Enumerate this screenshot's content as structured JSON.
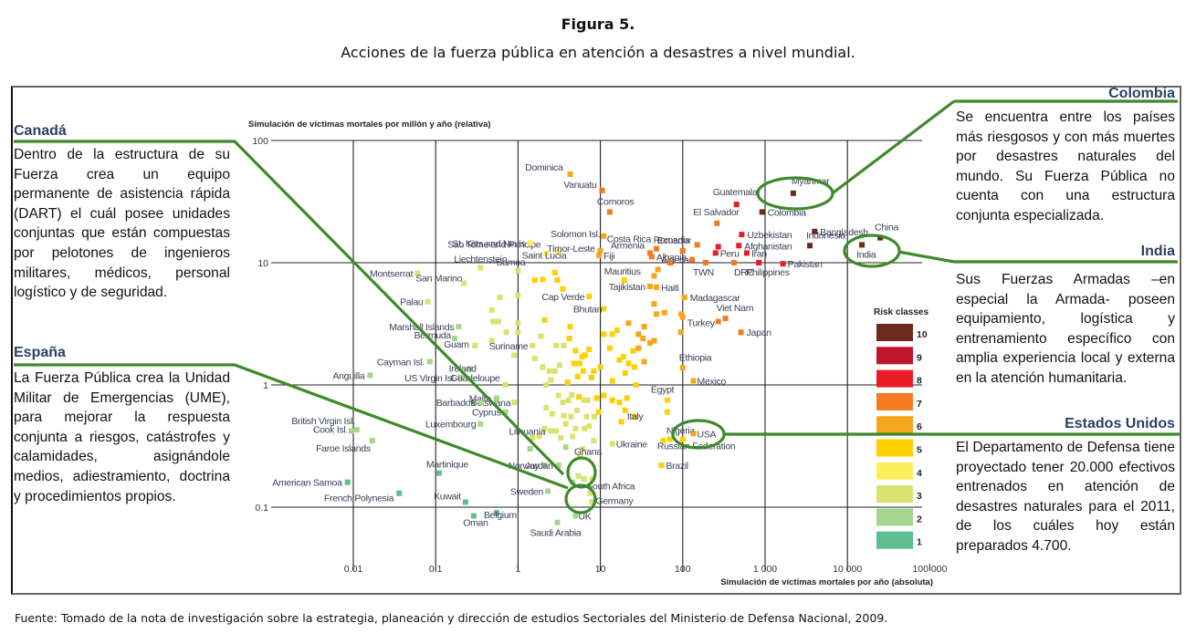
{
  "figure": {
    "title": "Figura 5.",
    "subtitle": "Acciones de la fuerza pública en atención a desastres a nivel mundial.",
    "source": "Fuente: Tomado de la nota de investigación sobre la estrategia, planeación y dirección de estudios Sectoriales del Ministerio de Defensa Nacional, 2009."
  },
  "panels": {
    "canada": {
      "title": "Canadá",
      "body": "Dentro de la estructura de su Fuerza crea un equipo permanente de asistencia rápida (DART) el cuál posee unidades conjuntas que están compuestas por pelotones de ingenieros militares, médicos, personal logístico y de seguridad."
    },
    "espana": {
      "title": "España",
      "body": "La Fuerza Pública crea la Unidad Militar de Emergencias (UME), para mejorar la respuesta conjunta a riesgos, catástrofes y calamidades, asignándole medios, adiestramiento, doctrina y procedimientos propios."
    },
    "colombia": {
      "title": "Colombia",
      "body": "Se encuentra entre los países más riesgosos y con más muertes por desastres naturales del mundo. Su Fuerza Pública no cuenta con una estructura conjunta especializada."
    },
    "india": {
      "title": "India",
      "body": "Sus Fuerzas Armadas –en especial la Armada- poseen equipamiento, logística y entrenamiento específico con amplia experiencia local y externa en la atención humanitaria."
    },
    "usa": {
      "title": "Estados Unidos",
      "body": "El Departamento de Defensa tiene proyectado tener 20.000 efectivos entrenados en atención de desastres naturales para el 2011, de los cuáles hoy están preparados 4.700."
    }
  },
  "chart_data": {
    "type": "scatter",
    "title": "",
    "xlabel": "Simulación de víctimas mortales por año (absoluta)",
    "ylabel": "Simulación de víctimas mortales por millón y año (relativa)",
    "xscale": "log",
    "yscale": "log",
    "xlim": [
      0.01,
      100000
    ],
    "ylim": [
      0.05,
      100
    ],
    "x_ticks": [
      "0.01",
      "0.1",
      "1",
      "10",
      "100",
      "1 000",
      "10 000",
      "100 000"
    ],
    "x_tick_values": [
      0.01,
      0.1,
      1,
      10,
      100,
      1000,
      10000,
      100000
    ],
    "y_ticks": [
      "100",
      "10",
      "1",
      "0.1"
    ],
    "y_tick_values": [
      100,
      10,
      1,
      0.1
    ],
    "grid": true,
    "legend": {
      "title": "Risk classes",
      "placement": "right",
      "classes": [
        {
          "label": "10",
          "color": "#6b2a1c"
        },
        {
          "label": "9",
          "color": "#c0152f"
        },
        {
          "label": "8",
          "color": "#ec1c24"
        },
        {
          "label": "7",
          "color": "#f37c20"
        },
        {
          "label": "6",
          "color": "#f6a51d"
        },
        {
          "label": "5",
          "color": "#fdd000"
        },
        {
          "label": "4",
          "color": "#fcef5b"
        },
        {
          "label": "3",
          "color": "#d9e36e"
        },
        {
          "label": "2",
          "color": "#a8d58d"
        },
        {
          "label": "1",
          "color": "#5cbf8f"
        }
      ]
    },
    "highlighted": [
      "Colombia",
      "India",
      "USA",
      "Ghana",
      "South Africa"
    ],
    "points": [
      {
        "label": "Dominica",
        "x": 4.3,
        "y": 53,
        "cls": 6
      },
      {
        "label": "Vanuatu",
        "x": 10.5,
        "y": 39,
        "cls": 7
      },
      {
        "label": "Comoros",
        "x": 13,
        "y": 26,
        "cls": 7
      },
      {
        "label": "Guatemala",
        "x": 450,
        "y": 30,
        "cls": 8
      },
      {
        "label": "El Salvador",
        "x": 260,
        "y": 21,
        "cls": 7
      },
      {
        "label": "Myanmar",
        "x": 2200,
        "y": 37,
        "cls": 10
      },
      {
        "label": "Colombia",
        "x": 920,
        "y": 26,
        "cls": 10
      },
      {
        "label": "Bangladesh",
        "x": 4000,
        "y": 18,
        "cls": 10
      },
      {
        "label": "Uzbekistan",
        "x": 520,
        "y": 17,
        "cls": 8
      },
      {
        "label": "",
        "x": 270,
        "y": 13.5,
        "cls": 8
      },
      {
        "label": "Afghanistan",
        "x": 480,
        "y": 13.8,
        "cls": 8
      },
      {
        "label": "Romania",
        "x": 150,
        "y": 14,
        "cls": 7
      },
      {
        "label": "Indonesia",
        "x": 3500,
        "y": 13.8,
        "cls": 10
      },
      {
        "label": "China",
        "x": 25000,
        "y": 16,
        "cls": 10
      },
      {
        "label": "India",
        "x": 15000,
        "y": 14,
        "cls": 10
      },
      {
        "label": "Solomon Isl.",
        "x": 11,
        "y": 16.5,
        "cls": 6
      },
      {
        "label": "Costa Rica",
        "x": 48,
        "y": 13,
        "cls": 7
      },
      {
        "label": "Sao Tome and Principe",
        "x": 2.2,
        "y": 12,
        "cls": 4
      },
      {
        "label": "St. Kitts and Nevis",
        "x": 1.4,
        "y": 14.5,
        "cls": 4
      },
      {
        "label": "Saint Lucia",
        "x": 3.1,
        "y": 12.4,
        "cls": 4
      },
      {
        "label": "Timor-Leste",
        "x": 10,
        "y": 12.5,
        "cls": 6
      },
      {
        "label": "Fiji",
        "x": 9.6,
        "y": 11.5,
        "cls": 6
      },
      {
        "label": "Armenia",
        "x": 40,
        "y": 12,
        "cls": 7
      },
      {
        "label": "Albania",
        "x": 42,
        "y": 11.2,
        "cls": 7
      },
      {
        "label": "Ecuador",
        "x": 100,
        "y": 12.5,
        "cls": 7
      },
      {
        "label": "Algeria",
        "x": 130,
        "y": 10.6,
        "cls": 7
      },
      {
        "label": "Peru",
        "x": 250,
        "y": 12,
        "cls": 8
      },
      {
        "label": "Iran",
        "x": 600,
        "y": 12,
        "cls": 8
      },
      {
        "label": "TWN",
        "x": 190,
        "y": 10,
        "cls": 7
      },
      {
        "label": "DRC",
        "x": 420,
        "y": 10,
        "cls": 7
      },
      {
        "label": "Philippines",
        "x": 840,
        "y": 10,
        "cls": 8
      },
      {
        "label": "Pakistan",
        "x": 1650,
        "y": 9.8,
        "cls": 8
      },
      {
        "label": "",
        "x": 70,
        "y": 10,
        "cls": 7
      },
      {
        "label": "Montserrat",
        "x": 0.06,
        "y": 8.2,
        "cls": 3
      },
      {
        "label": "Liechtenstein",
        "x": 0.35,
        "y": 9.1,
        "cls": 3
      },
      {
        "label": "San Marino",
        "x": 0.22,
        "y": 6.8,
        "cls": 3
      },
      {
        "label": "Samoa",
        "x": 1.0,
        "y": 8.6,
        "cls": 3
      },
      {
        "label": "Palau",
        "x": 0.08,
        "y": 4.8,
        "cls": 3
      },
      {
        "label": "Cap Verde",
        "x": 7.3,
        "y": 5.3,
        "cls": 5
      },
      {
        "label": "Mauritius",
        "x": 19.5,
        "y": 7.2,
        "cls": 5
      },
      {
        "label": "Tajikistan",
        "x": 40,
        "y": 6.4,
        "cls": 6
      },
      {
        "label": "Haiti",
        "x": 48,
        "y": 6.3,
        "cls": 6
      },
      {
        "label": "Madagascar",
        "x": 105,
        "y": 5.2,
        "cls": 6
      },
      {
        "label": "Bhutan",
        "x": 11,
        "y": 4.2,
        "cls": 5
      },
      {
        "label": "Viet Nam",
        "x": 330,
        "y": 3.5,
        "cls": 7
      },
      {
        "label": "Turkey",
        "x": 270,
        "y": 3.3,
        "cls": 7
      },
      {
        "label": "Japan",
        "x": 510,
        "y": 2.7,
        "cls": 7
      },
      {
        "label": "Marshall Islands",
        "x": 0.19,
        "y": 3.0,
        "cls": 2
      },
      {
        "label": "Bermuda",
        "x": 0.17,
        "y": 2.4,
        "cls": 2
      },
      {
        "label": "Guam",
        "x": 0.3,
        "y": 2.1,
        "cls": 3
      },
      {
        "label": "Suriname",
        "x": 1.5,
        "y": 2.1,
        "cls": 3
      },
      {
        "label": "Cayman Isl.",
        "x": 0.085,
        "y": 1.55,
        "cls": 2
      },
      {
        "label": "Ireland",
        "x": 0.26,
        "y": 1.35,
        "cls": 2
      },
      {
        "label": "Anguilla",
        "x": 0.016,
        "y": 1.2,
        "cls": 2
      },
      {
        "label": "US Virgin Isl.",
        "x": 0.2,
        "y": 1.15,
        "cls": 2
      },
      {
        "label": "Guadeloupe",
        "x": 0.7,
        "y": 1.0,
        "cls": 3
      },
      {
        "label": "Ethiopia",
        "x": 100,
        "y": 1.38,
        "cls": 6
      },
      {
        "label": "Mexico",
        "x": 135,
        "y": 1.08,
        "cls": 6
      },
      {
        "label": "Malta",
        "x": 0.55,
        "y": 0.78,
        "cls": 2
      },
      {
        "label": "Botswana",
        "x": 0.9,
        "y": 0.72,
        "cls": 3
      },
      {
        "label": "Barbados",
        "x": 0.35,
        "y": 0.72,
        "cls": 2
      },
      {
        "label": "Cyprus",
        "x": 0.7,
        "y": 0.6,
        "cls": 2
      },
      {
        "label": "Egypt",
        "x": 65,
        "y": 0.75,
        "cls": 5
      },
      {
        "label": "Italy",
        "x": 20,
        "y": 0.62,
        "cls": 5
      },
      {
        "label": "Luxembourg",
        "x": 0.35,
        "y": 0.48,
        "cls": 2
      },
      {
        "label": "British Virgin Isl.",
        "x": 0.011,
        "y": 0.43,
        "cls": 2
      },
      {
        "label": "Cook Isl.",
        "x": 0.0095,
        "y": 0.42,
        "cls": 2
      },
      {
        "label": "Faroe Islands",
        "x": 0.017,
        "y": 0.35,
        "cls": 2
      },
      {
        "label": "Lithuania",
        "x": 2.5,
        "y": 0.42,
        "cls": 3
      },
      {
        "label": "Nigeria",
        "x": 70,
        "y": 0.36,
        "cls": 5
      },
      {
        "label": "USA",
        "x": 135,
        "y": 0.4,
        "cls": 6
      },
      {
        "label": "Russian Federation",
        "x": 100,
        "y": 0.36,
        "cls": 5
      },
      {
        "label": "Ukraine",
        "x": 14,
        "y": 0.33,
        "cls": 3
      },
      {
        "label": "Ghana",
        "x": 5.6,
        "y": 0.26,
        "cls": 3
      },
      {
        "label": "Brazil",
        "x": 55,
        "y": 0.22,
        "cls": 5
      },
      {
        "label": "Norway",
        "x": 2.1,
        "y": 0.22,
        "cls": 2
      },
      {
        "label": "Jordan",
        "x": 3.1,
        "y": 0.22,
        "cls": 2
      },
      {
        "label": "American Samoa",
        "x": 0.0085,
        "y": 0.16,
        "cls": 1
      },
      {
        "label": "Martinique",
        "x": 0.11,
        "y": 0.19,
        "cls": 1
      },
      {
        "label": "French Polynesia",
        "x": 0.036,
        "y": 0.13,
        "cls": 1
      },
      {
        "label": "Kuwait",
        "x": 0.23,
        "y": 0.11,
        "cls": 1
      },
      {
        "label": "Sweden",
        "x": 2.3,
        "y": 0.135,
        "cls": 2
      },
      {
        "label": "South Africa",
        "x": 7.5,
        "y": 0.13,
        "cls": 3
      },
      {
        "label": "Germany",
        "x": 7.9,
        "y": 0.11,
        "cls": 3
      },
      {
        "label": "Oman",
        "x": 0.29,
        "y": 0.085,
        "cls": 1
      },
      {
        "label": "Belgium",
        "x": 0.55,
        "y": 0.09,
        "cls": 1
      },
      {
        "label": "UK",
        "x": 5.0,
        "y": 0.085,
        "cls": 2
      },
      {
        "label": "Saudi Arabia",
        "x": 3.0,
        "y": 0.075,
        "cls": 2
      }
    ],
    "unlabeled_points": [
      {
        "x": 2.8,
        "y": 8.3,
        "cls": 5
      },
      {
        "x": 1.6,
        "y": 7.2,
        "cls": 5
      },
      {
        "x": 2.0,
        "y": 7.3,
        "cls": 5
      },
      {
        "x": 3.0,
        "y": 7.2,
        "cls": 5
      },
      {
        "x": 3.5,
        "y": 6.1,
        "cls": 5
      },
      {
        "x": 1.0,
        "y": 5.4,
        "cls": 3
      },
      {
        "x": 0.6,
        "y": 5.2,
        "cls": 3
      },
      {
        "x": 0.48,
        "y": 4.1,
        "cls": 3
      },
      {
        "x": 0.5,
        "y": 3.3,
        "cls": 3
      },
      {
        "x": 0.58,
        "y": 3.3,
        "cls": 3
      },
      {
        "x": 1.0,
        "y": 3.2,
        "cls": 3
      },
      {
        "x": 2.1,
        "y": 3.4,
        "cls": 5
      },
      {
        "x": 0.72,
        "y": 2.7,
        "cls": 3
      },
      {
        "x": 1.0,
        "y": 2.7,
        "cls": 3
      },
      {
        "x": 1.9,
        "y": 2.5,
        "cls": 3
      },
      {
        "x": 0.48,
        "y": 2.3,
        "cls": 3
      },
      {
        "x": 2.9,
        "y": 2.1,
        "cls": 3
      },
      {
        "x": 3.6,
        "y": 2.1,
        "cls": 3
      },
      {
        "x": 0.9,
        "y": 1.75,
        "cls": 3
      },
      {
        "x": 1.6,
        "y": 1.65,
        "cls": 3
      },
      {
        "x": 2.0,
        "y": 1.4,
        "cls": 3
      },
      {
        "x": 2.4,
        "y": 1.3,
        "cls": 3
      },
      {
        "x": 2.8,
        "y": 1.3,
        "cls": 3
      },
      {
        "x": 3.2,
        "y": 1.45,
        "cls": 3
      },
      {
        "x": 2.5,
        "y": 1.1,
        "cls": 3
      },
      {
        "x": 2.2,
        "y": 1.0,
        "cls": 3
      },
      {
        "x": 4.3,
        "y": 3.0,
        "cls": 5
      },
      {
        "x": 4.2,
        "y": 2.4,
        "cls": 5
      },
      {
        "x": 5.0,
        "y": 1.9,
        "cls": 5
      },
      {
        "x": 6.0,
        "y": 1.7,
        "cls": 5
      },
      {
        "x": 6.5,
        "y": 1.75,
        "cls": 5
      },
      {
        "x": 7.3,
        "y": 1.95,
        "cls": 5
      },
      {
        "x": 4.8,
        "y": 1.5,
        "cls": 5
      },
      {
        "x": 5.6,
        "y": 1.5,
        "cls": 5
      },
      {
        "x": 6.2,
        "y": 1.3,
        "cls": 5
      },
      {
        "x": 5.3,
        "y": 1.17,
        "cls": 5
      },
      {
        "x": 4.0,
        "y": 1.05,
        "cls": 5
      },
      {
        "x": 7.8,
        "y": 1.15,
        "cls": 5
      },
      {
        "x": 8.3,
        "y": 1.3,
        "cls": 5
      },
      {
        "x": 10,
        "y": 1.4,
        "cls": 5
      },
      {
        "x": 11,
        "y": 2.6,
        "cls": 5
      },
      {
        "x": 13,
        "y": 2.0,
        "cls": 5
      },
      {
        "x": 14,
        "y": 2.6,
        "cls": 5
      },
      {
        "x": 16,
        "y": 2.8,
        "cls": 5
      },
      {
        "x": 17,
        "y": 1.6,
        "cls": 5
      },
      {
        "x": 19,
        "y": 1.7,
        "cls": 5
      },
      {
        "x": 22,
        "y": 1.5,
        "cls": 5
      },
      {
        "x": 20,
        "y": 1.25,
        "cls": 5
      },
      {
        "x": 25,
        "y": 1.9,
        "cls": 5
      },
      {
        "x": 26,
        "y": 1.4,
        "cls": 5
      },
      {
        "x": 14,
        "y": 1.08,
        "cls": 5
      },
      {
        "x": 27,
        "y": 1.0,
        "cls": 5
      },
      {
        "x": 22,
        "y": 3.2,
        "cls": 6
      },
      {
        "x": 29,
        "y": 2.6,
        "cls": 6
      },
      {
        "x": 33,
        "y": 2.4,
        "cls": 6
      },
      {
        "x": 40,
        "y": 2.2,
        "cls": 6
      },
      {
        "x": 45,
        "y": 2.3,
        "cls": 6
      },
      {
        "x": 34,
        "y": 3.0,
        "cls": 6
      },
      {
        "x": 29,
        "y": 2.0,
        "cls": 6
      },
      {
        "x": 34,
        "y": 1.55,
        "cls": 6
      },
      {
        "x": 48,
        "y": 3.8,
        "cls": 6
      },
      {
        "x": 60,
        "y": 3.9,
        "cls": 6
      },
      {
        "x": 45,
        "y": 4.6,
        "cls": 6
      },
      {
        "x": 100,
        "y": 3.6,
        "cls": 6
      },
      {
        "x": 96,
        "y": 3.8,
        "cls": 6
      },
      {
        "x": 95,
        "y": 2.7,
        "cls": 6
      },
      {
        "x": 50,
        "y": 8.8,
        "cls": 6
      },
      {
        "x": 45,
        "y": 7.8,
        "cls": 6
      },
      {
        "x": 5.5,
        "y": 0.8,
        "cls": 5
      },
      {
        "x": 9,
        "y": 0.78,
        "cls": 5
      },
      {
        "x": 11,
        "y": 0.82,
        "cls": 5
      },
      {
        "x": 14,
        "y": 0.75,
        "cls": 5
      },
      {
        "x": 17,
        "y": 0.72,
        "cls": 5
      },
      {
        "x": 21,
        "y": 0.78,
        "cls": 5
      },
      {
        "x": 26,
        "y": 0.55,
        "cls": 5
      },
      {
        "x": 9.5,
        "y": 0.6,
        "cls": 5
      },
      {
        "x": 18,
        "y": 0.5,
        "cls": 5
      },
      {
        "x": 65,
        "y": 0.6,
        "cls": 5
      },
      {
        "x": 58,
        "y": 0.35,
        "cls": 5
      },
      {
        "x": 3.1,
        "y": 0.82,
        "cls": 3
      },
      {
        "x": 3.5,
        "y": 0.72,
        "cls": 3
      },
      {
        "x": 4.1,
        "y": 0.75,
        "cls": 3
      },
      {
        "x": 4.5,
        "y": 0.83,
        "cls": 3
      },
      {
        "x": 6.3,
        "y": 0.75,
        "cls": 3
      },
      {
        "x": 7.0,
        "y": 0.75,
        "cls": 3
      },
      {
        "x": 5.2,
        "y": 0.62,
        "cls": 3
      },
      {
        "x": 2.2,
        "y": 0.65,
        "cls": 3
      },
      {
        "x": 2.6,
        "y": 0.58,
        "cls": 3
      },
      {
        "x": 3.6,
        "y": 0.56,
        "cls": 3
      },
      {
        "x": 4.4,
        "y": 0.55,
        "cls": 3
      },
      {
        "x": 6.8,
        "y": 0.55,
        "cls": 3
      },
      {
        "x": 8.4,
        "y": 0.55,
        "cls": 3
      },
      {
        "x": 3.8,
        "y": 0.48,
        "cls": 3
      },
      {
        "x": 5.0,
        "y": 0.44,
        "cls": 3
      },
      {
        "x": 6.4,
        "y": 0.44,
        "cls": 3
      },
      {
        "x": 7.3,
        "y": 0.46,
        "cls": 3
      },
      {
        "x": 2.1,
        "y": 0.44,
        "cls": 3
      },
      {
        "x": 2.9,
        "y": 0.42,
        "cls": 3
      },
      {
        "x": 1.5,
        "y": 0.37,
        "cls": 3
      },
      {
        "x": 1.8,
        "y": 0.38,
        "cls": 3
      },
      {
        "x": 3.3,
        "y": 0.37,
        "cls": 3
      },
      {
        "x": 4.6,
        "y": 0.38,
        "cls": 3
      },
      {
        "x": 8.3,
        "y": 0.35,
        "cls": 3
      },
      {
        "x": 6.1,
        "y": 0.3,
        "cls": 3
      },
      {
        "x": 3.8,
        "y": 0.31,
        "cls": 2
      },
      {
        "x": 1.4,
        "y": 0.3,
        "cls": 2
      },
      {
        "x": 5.4,
        "y": 0.18,
        "cls": 3
      },
      {
        "x": 6.3,
        "y": 0.17,
        "cls": 3
      },
      {
        "x": 8.0,
        "y": 0.17,
        "cls": 3
      },
      {
        "x": 4.6,
        "y": 0.16,
        "cls": 2
      }
    ]
  }
}
